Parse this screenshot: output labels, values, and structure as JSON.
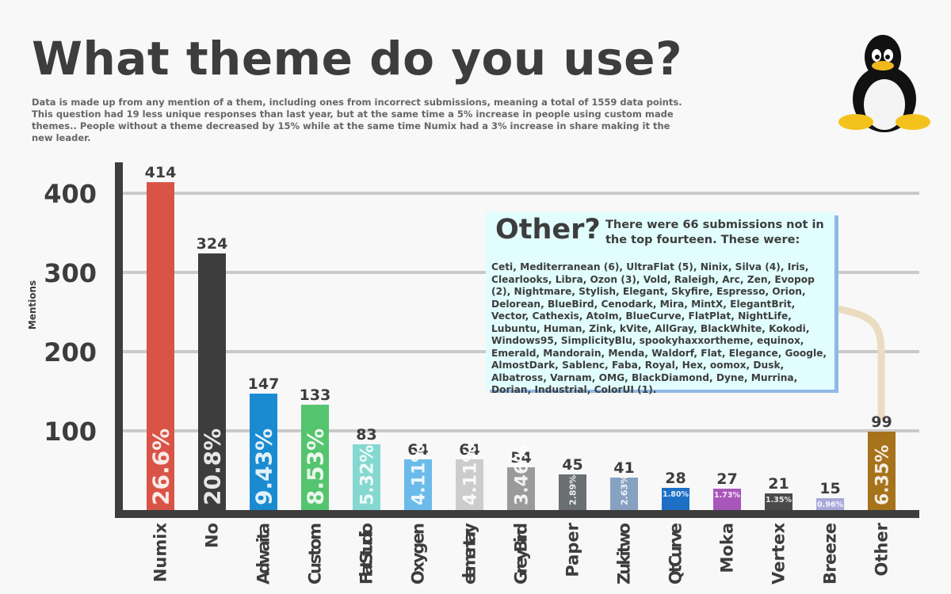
{
  "title": "What theme do you use?",
  "subtitle": "Data is made up from any mention of a them, including ones from incorrect submissions, meaning a total of 1559 data points.\n This question had 19 less unique responses than last year, but at the same time a 5% increase in people using custom made themes.. People without a theme decreased by 15% while at the same time Numix had a 3% increase in share making it the new leader.",
  "logo": "tux-penguin-icon",
  "other_box": {
    "heading": "Other?",
    "intro": "There were 66 submissions not in the top fourteen. These were:",
    "list": "Ceti, Mediterranean (6), UltraFlat (5), Ninix, Silva (4), Iris, Clearlooks, Libra, Ozon (3), Vold, Raleigh, Arc, Zen, Evopop (2), Nightmare, Stylish, Elegant, Skyfire, Espresso, Orion, Delorean, BlueBird, Cenodark, Mira, MintX, ElegantBrit, Vector, Cathexis, AtoIm, BlueCurve, FlatPlat, NightLife, Lubuntu, Human, Zink, kVite, AllGray, BlackWhite, Kokodi, Windows95, SimplicityBlu, spookyhaxxortheme, equinox, Emerald, Mandorain, Menda, Waldorf, Flat, Elegance, Google, AlmostDark,  Sablenc, Faba, Royal, Hex, oomox, Dusk, Albatross, Varnam, OMG, BlackDiamond, Dyne, Murrina, Dorian, Industrial, ColorUI (1)."
  },
  "chart_data": {
    "type": "bar",
    "title": "What theme do you use?",
    "ylabel": "Mentions",
    "xlabel": "",
    "ylim": [
      0,
      440
    ],
    "yticks": [
      100,
      200,
      300,
      400
    ],
    "grid": true,
    "categories": [
      "Numix",
      "No",
      "Adwaita",
      "Custom",
      "FlatStudio",
      "Oxygen",
      "elementary",
      "GreyBird",
      "Paper",
      "Zukitwo",
      "QtCurve",
      "Moka",
      "Vertex",
      "Breeze",
      "Other"
    ],
    "values": [
      414,
      324,
      147,
      133,
      83,
      64,
      64,
      54,
      45,
      41,
      28,
      27,
      21,
      15,
      99
    ],
    "value_labels": [
      "414",
      "324",
      "147",
      "133",
      "83",
      "64",
      "64",
      "54",
      "45",
      "41",
      "28",
      "27",
      "21",
      "15",
      "99"
    ],
    "percent_labels": [
      "26.6%",
      "20.8%",
      "9.43%",
      "8.53%",
      "5.32%",
      "4.11%",
      "4.11%",
      "3.46%",
      "2.89%",
      "2.63%",
      "1.80%",
      "1.73%",
      "1.35%",
      "0.96%",
      "6.35%"
    ],
    "colors": [
      "#d95446",
      "#3d3d3d",
      "#1b8bd1",
      "#55c46e",
      "#85d8d0",
      "#6bbbea",
      "#cccccc",
      "#9a9a9a",
      "#6a6f72",
      "#87a1c2",
      "#1d6fc6",
      "#a956bb",
      "#4a4a4a",
      "#a9a9dc",
      "#a6731b"
    ]
  }
}
